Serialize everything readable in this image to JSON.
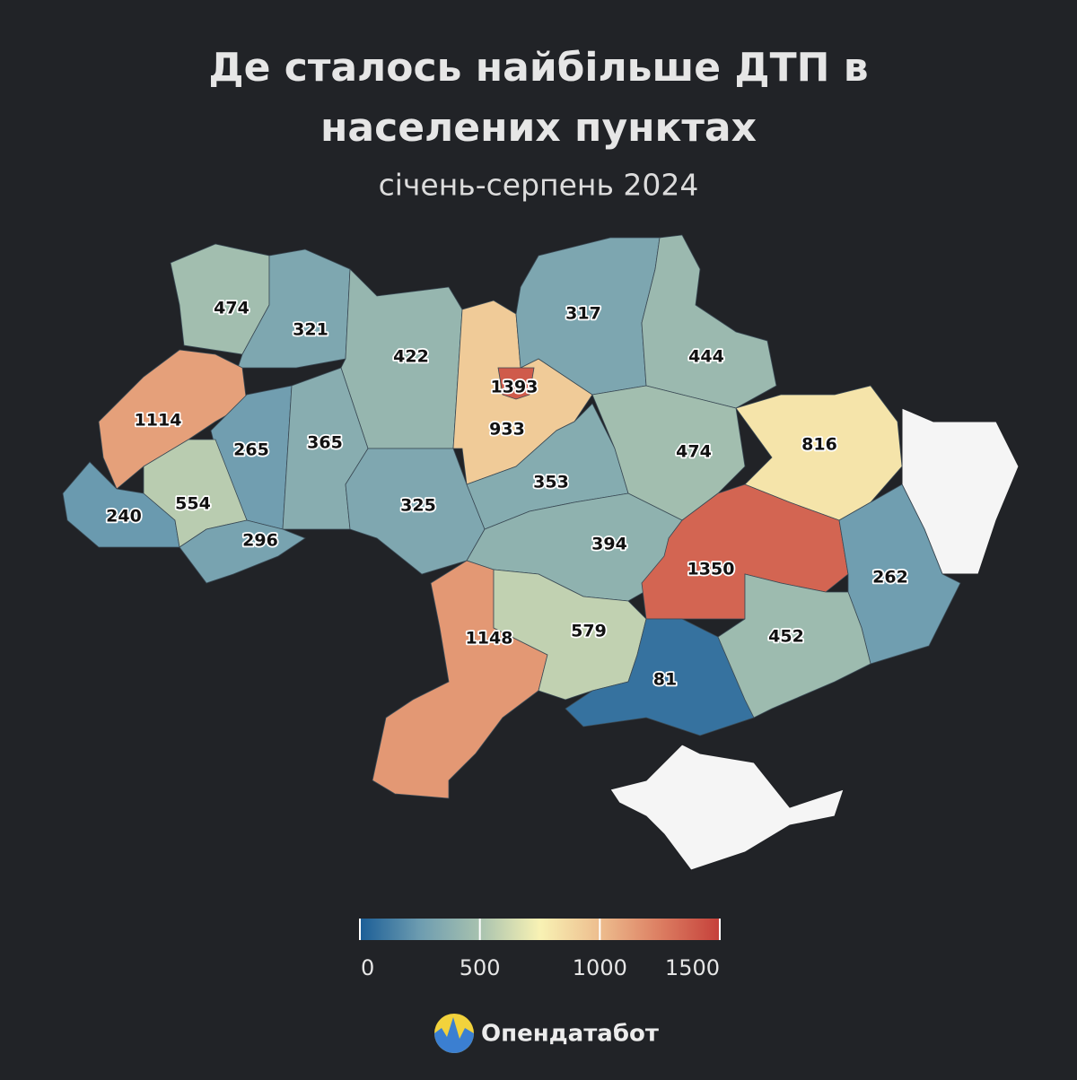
{
  "chart_data": {
    "type": "choropleth",
    "title": [
      "Де сталось найбільше ДТП в",
      "населених пунктах"
    ],
    "subtitle": "січень-серпень 2024",
    "values": [
      474,
      321,
      422,
      1393,
      933,
      317,
      444,
      1114,
      265,
      365,
      325,
      353,
      474,
      816,
      240,
      554,
      296,
      394,
      1350,
      262,
      1148,
      579,
      81,
      452
    ],
    "colorscale": [
      "#1b5e97",
      "#6d9cb0",
      "#a8c2af",
      "#f8f2b4",
      "#edbd8e",
      "#dc7e62",
      "#c5403a"
    ],
    "no_data_color": "#f5f5f5",
    "colorbar": {
      "lim": [
        0,
        1500
      ],
      "ticks": [
        0,
        500,
        1000,
        1500
      ]
    },
    "brand": "Опендатабот"
  }
}
